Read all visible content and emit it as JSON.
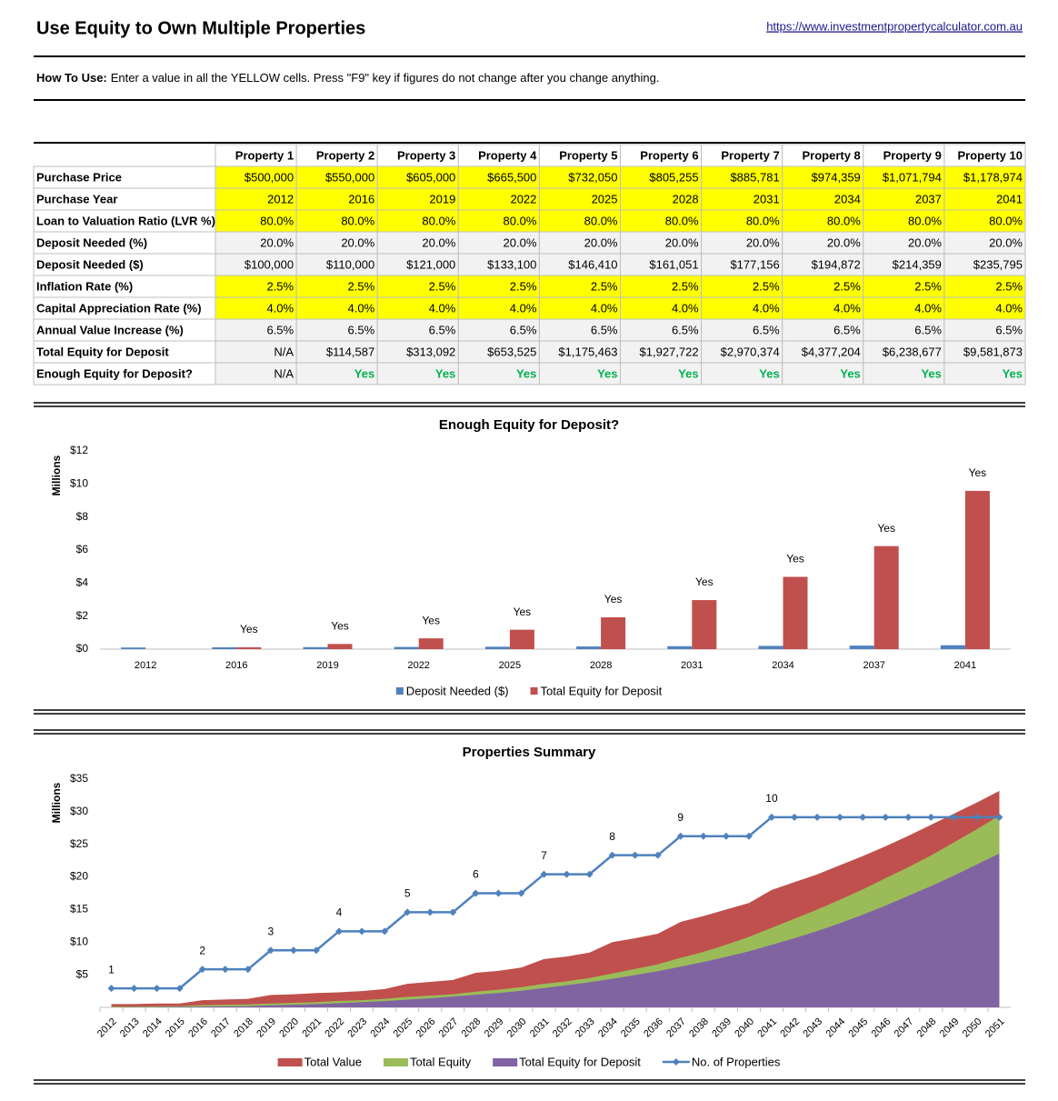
{
  "header": {
    "title": "Use Equity to Own Multiple Properties",
    "link": "https://www.investmentpropertycalculator.com.au"
  },
  "instructions": {
    "label": "How To Use:",
    "text": "Enter a value in all the YELLOW cells. Press \"F9\" key if figures do not change after you change anything."
  },
  "table": {
    "columns": [
      "Property 1",
      "Property 2",
      "Property 3",
      "Property 4",
      "Property 5",
      "Property 6",
      "Property 7",
      "Property 8",
      "Property 9",
      "Property 10"
    ],
    "rows": [
      {
        "label": "Purchase Price",
        "fill": "#ffff00",
        "cells": [
          "$500,000",
          "$550,000",
          "$605,000",
          "$665,500",
          "$732,050",
          "$805,255",
          "$885,781",
          "$974,359",
          "$1,071,794",
          "$1,178,974"
        ]
      },
      {
        "label": "Purchase Year",
        "fill": "#ffff00",
        "cells": [
          "2012",
          "2016",
          "2019",
          "2022",
          "2025",
          "2028",
          "2031",
          "2034",
          "2037",
          "2041"
        ]
      },
      {
        "label": "Loan to Valuation Ratio (LVR %)",
        "fill": "#ffff00",
        "cells": [
          "80.0%",
          "80.0%",
          "80.0%",
          "80.0%",
          "80.0%",
          "80.0%",
          "80.0%",
          "80.0%",
          "80.0%",
          "80.0%"
        ]
      },
      {
        "label": "Deposit Needed (%)",
        "fill": "#f2f2f2",
        "cells": [
          "20.0%",
          "20.0%",
          "20.0%",
          "20.0%",
          "20.0%",
          "20.0%",
          "20.0%",
          "20.0%",
          "20.0%",
          "20.0%"
        ]
      },
      {
        "label": "Deposit Needed ($)",
        "fill": "#f2f2f2",
        "cells": [
          "$100,000",
          "$110,000",
          "$121,000",
          "$133,100",
          "$146,410",
          "$161,051",
          "$177,156",
          "$194,872",
          "$214,359",
          "$235,795"
        ]
      },
      {
        "label": "Inflation Rate (%)",
        "fill": "#ffff00",
        "cells": [
          "2.5%",
          "2.5%",
          "2.5%",
          "2.5%",
          "2.5%",
          "2.5%",
          "2.5%",
          "2.5%",
          "2.5%",
          "2.5%"
        ]
      },
      {
        "label": "Capital Appreciation Rate (%)",
        "fill": "#ffff00",
        "cells": [
          "4.0%",
          "4.0%",
          "4.0%",
          "4.0%",
          "4.0%",
          "4.0%",
          "4.0%",
          "4.0%",
          "4.0%",
          "4.0%"
        ]
      },
      {
        "label": "Annual Value Increase (%)",
        "fill": "#f2f2f2",
        "cells": [
          "6.5%",
          "6.5%",
          "6.5%",
          "6.5%",
          "6.5%",
          "6.5%",
          "6.5%",
          "6.5%",
          "6.5%",
          "6.5%"
        ]
      },
      {
        "label": "Total Equity for Deposit",
        "fill": "#f2f2f2",
        "cells": [
          "N/A",
          "$114,587",
          "$313,092",
          "$653,525",
          "$1,175,463",
          "$1,927,722",
          "$2,970,374",
          "$4,377,204",
          "$6,238,677",
          "$9,581,873"
        ]
      },
      {
        "label": "Enough Equity for Deposit?",
        "fill": "#f2f2f2",
        "cells": [
          "N/A",
          {
            "text": "Yes",
            "color": "#00b050"
          },
          {
            "text": "Yes",
            "color": "#00b050"
          },
          {
            "text": "Yes",
            "color": "#00b050"
          },
          {
            "text": "Yes",
            "color": "#00b050"
          },
          {
            "text": "Yes",
            "color": "#00b050"
          },
          {
            "text": "Yes",
            "color": "#00b050"
          },
          {
            "text": "Yes",
            "color": "#00b050"
          },
          {
            "text": "Yes",
            "color": "#00b050"
          },
          {
            "text": "Yes",
            "color": "#00b050"
          }
        ]
      }
    ]
  },
  "chart_data": [
    {
      "type": "bar",
      "title": "Enough Equity for Deposit?",
      "ylabel": "Millions",
      "grid": false,
      "categories": [
        "2012",
        "2016",
        "2019",
        "2022",
        "2025",
        "2028",
        "2031",
        "2034",
        "2037",
        "2041"
      ],
      "series": [
        {
          "name": "Deposit Needed ($)",
          "color": "#4f81bd",
          "values": [
            0.1,
            0.11,
            0.121,
            0.1331,
            0.14641,
            0.161051,
            0.177156,
            0.194872,
            0.214359,
            0.235795
          ]
        },
        {
          "name": "Total Equity for Deposit",
          "color": "#c0504d",
          "values": [
            null,
            0.114587,
            0.313092,
            0.653525,
            1.175463,
            1.927722,
            2.970374,
            4.377204,
            6.238677,
            9.581873
          ],
          "value_labels": [
            null,
            "Yes",
            "Yes",
            "Yes",
            "Yes",
            "Yes",
            "Yes",
            "Yes",
            "Yes",
            "Yes"
          ]
        }
      ],
      "ylim": [
        0,
        12
      ],
      "yticks": [
        {
          "value": 0,
          "label": "$0"
        },
        {
          "value": 2,
          "label": "$2"
        },
        {
          "value": 4,
          "label": "$4"
        },
        {
          "value": 6,
          "label": "$6"
        },
        {
          "value": 8,
          "label": "$8"
        },
        {
          "value": 10,
          "label": "$10"
        },
        {
          "value": 12,
          "label": "$12"
        }
      ]
    },
    {
      "type": "area",
      "title": "Properties Summary",
      "ylabel": "Millions",
      "grid": false,
      "categories": [
        "2012",
        "2013",
        "2014",
        "2015",
        "2016",
        "2017",
        "2018",
        "2019",
        "2020",
        "2021",
        "2022",
        "2023",
        "2024",
        "2025",
        "2026",
        "2027",
        "2028",
        "2029",
        "2030",
        "2031",
        "2032",
        "2033",
        "2034",
        "2035",
        "2036",
        "2037",
        "2038",
        "2039",
        "2040",
        "2041",
        "2042",
        "2043",
        "2044",
        "2045",
        "2046",
        "2047",
        "2048",
        "2049",
        "2050",
        "2051"
      ],
      "series": [
        {
          "name": "Total Value",
          "color": "#c0504d",
          "values": [
            0.5,
            0.5,
            0.6,
            0.6,
            1.1,
            1.2,
            1.3,
            1.9,
            2.0,
            2.2,
            2.3,
            2.5,
            2.8,
            3.6,
            3.9,
            4.2,
            5.3,
            5.6,
            6.1,
            7.4,
            7.8,
            8.4,
            10.0,
            10.6,
            11.3,
            13.1,
            14.0,
            15.0,
            16.0,
            18.0,
            19.2,
            20.4,
            21.8,
            23.2,
            24.7,
            26.3,
            28.0,
            29.7,
            31.4,
            33.2
          ]
        },
        {
          "name": "Total Equity",
          "color": "#9bbb59",
          "values": [
            0.1,
            0.13,
            0.17,
            0.2,
            0.35,
            0.4,
            0.45,
            0.6,
            0.7,
            0.8,
            1.0,
            1.1,
            1.3,
            1.6,
            1.8,
            2.0,
            2.4,
            2.7,
            3.1,
            3.6,
            4.0,
            4.5,
            5.2,
            5.9,
            6.6,
            7.6,
            8.5,
            9.6,
            10.8,
            12.2,
            13.6,
            15.0,
            16.5,
            18.1,
            19.8,
            21.5,
            23.3,
            25.3,
            27.3,
            29.4
          ]
        },
        {
          "name": "Total Equity for Deposit",
          "color": "#8064a2",
          "values": [
            0,
            0.03,
            0.06,
            0.09,
            0.11,
            0.15,
            0.2,
            0.31,
            0.4,
            0.5,
            0.65,
            0.8,
            0.95,
            1.18,
            1.4,
            1.65,
            1.93,
            2.2,
            2.55,
            2.97,
            3.4,
            3.85,
            4.38,
            4.95,
            5.55,
            6.24,
            6.95,
            7.75,
            8.6,
            9.58,
            10.6,
            11.7,
            12.9,
            14.2,
            15.6,
            17.1,
            18.6,
            20.2,
            21.9,
            23.6
          ]
        },
        {
          "name": "No. of Properties",
          "type": "line",
          "axis": "y2",
          "color": "#4f81bd",
          "values": [
            1,
            1,
            1,
            1,
            2,
            2,
            2,
            3,
            3,
            3,
            4,
            4,
            4,
            5,
            5,
            5,
            6,
            6,
            6,
            7,
            7,
            7,
            8,
            8,
            8,
            9,
            9,
            9,
            9,
            10,
            10,
            10,
            10,
            10,
            10,
            10,
            10,
            10,
            10,
            10
          ],
          "value_labels": [
            "1",
            null,
            null,
            null,
            "2",
            null,
            null,
            "3",
            null,
            null,
            "4",
            null,
            null,
            "5",
            null,
            null,
            "6",
            null,
            null,
            "7",
            null,
            null,
            "8",
            null,
            null,
            "9",
            null,
            null,
            null,
            "10",
            null,
            null,
            null,
            null,
            null,
            null,
            null,
            null,
            null,
            null
          ]
        }
      ],
      "ylim": [
        0,
        35
      ],
      "yticks": [
        {
          "value": 5,
          "label": "$5"
        },
        {
          "value": 10,
          "label": "$10"
        },
        {
          "value": 15,
          "label": "$15"
        },
        {
          "value": 20,
          "label": "$20"
        },
        {
          "value": 25,
          "label": "$25"
        },
        {
          "value": 30,
          "label": "$30"
        },
        {
          "value": 35,
          "label": "$35"
        }
      ],
      "y2lim": [
        0,
        12
      ]
    }
  ]
}
